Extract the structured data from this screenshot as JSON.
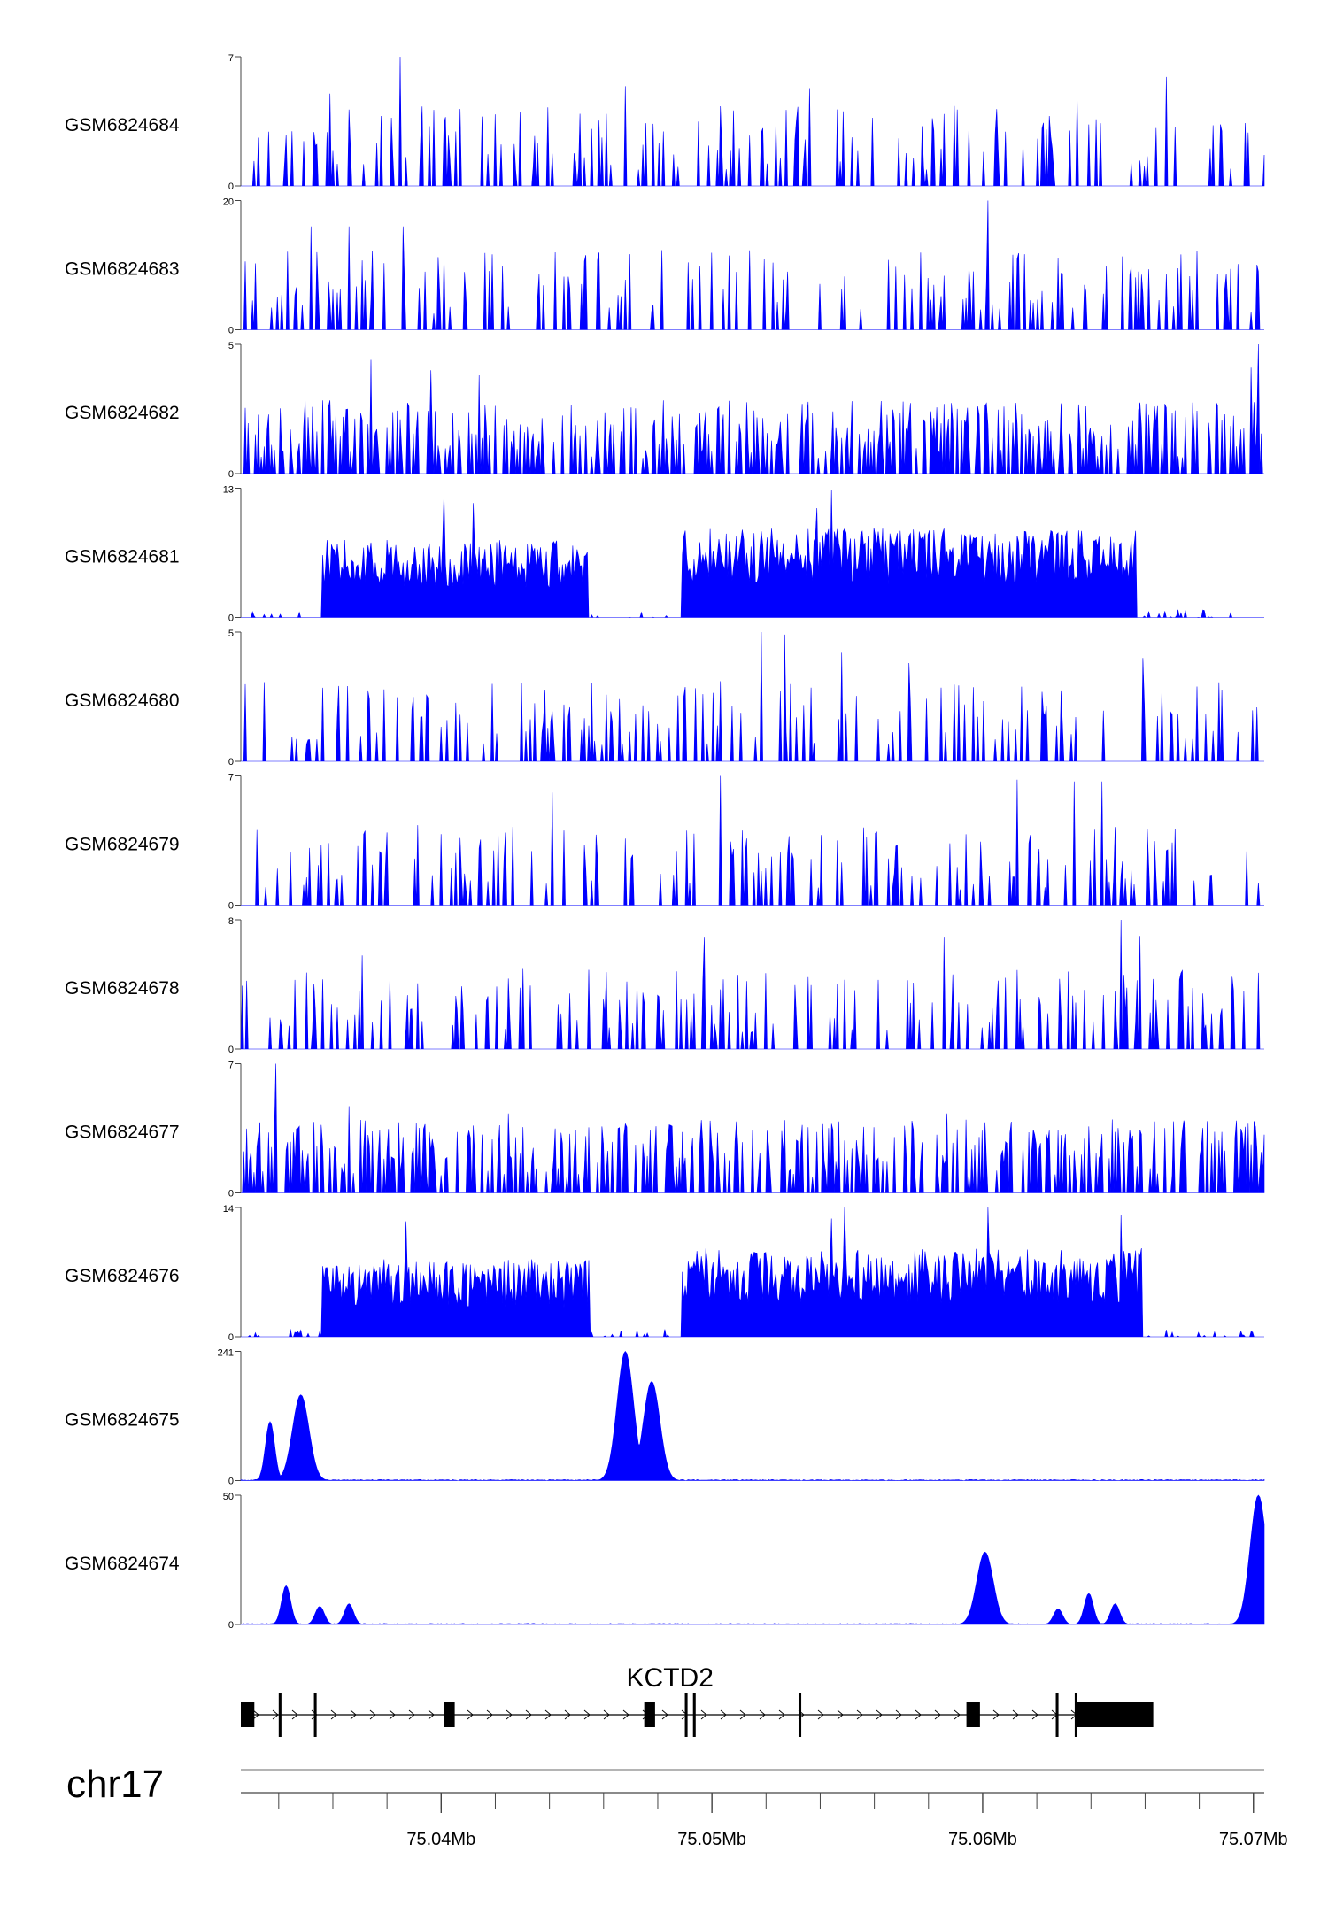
{
  "chart_data": {
    "type": "area",
    "title": "",
    "chromosome": "chr17",
    "xrange": [
      75.0326,
      75.0704
    ],
    "xtick_minor": [
      75.034,
      75.036,
      75.038,
      75.04,
      75.042,
      75.044,
      75.046,
      75.048,
      75.05,
      75.052,
      75.054,
      75.056,
      75.058,
      75.06,
      75.062,
      75.064,
      75.066,
      75.068,
      75.07
    ],
    "xtick_labels": [
      {
        "value": 75.04,
        "label": "75.04Mb"
      },
      {
        "value": 75.05,
        "label": "75.05Mb"
      },
      {
        "value": 75.06,
        "label": "75.06Mb"
      },
      {
        "value": 75.07,
        "label": "75.07Mb"
      }
    ],
    "fill_color": "#0000ff",
    "series": [
      {
        "name": "GSM6824684",
        "ymax": 7,
        "ymin_label": "0",
        "ymax_label": "7",
        "pattern": "sparse",
        "peaks": [
          [
            75.0385,
            7.0
          ],
          [
            75.0536,
            5.3
          ],
          [
            75.0668,
            5.9
          ],
          [
            75.0468,
            5.4
          ],
          [
            75.0635,
            4.9
          ],
          [
            75.0359,
            5.0
          ]
        ]
      },
      {
        "name": "GSM6824683",
        "ymax": 20,
        "ymin_label": "0",
        "ymax_label": "20",
        "pattern": "sparse",
        "peaks": [
          [
            75.0366,
            16.0
          ],
          [
            75.0352,
            16.0
          ],
          [
            75.0386,
            16.0
          ],
          [
            75.0602,
            20.0
          ],
          [
            75.0354,
            12.0
          ]
        ]
      },
      {
        "name": "GSM6824682",
        "ymax": 5,
        "ymin_label": "0",
        "ymax_label": "5",
        "pattern": "dense",
        "peaks": [
          [
            75.0702,
            5.0
          ],
          [
            75.0374,
            4.4
          ],
          [
            75.0396,
            4.0
          ],
          [
            75.0414,
            3.8
          ],
          [
            75.0699,
            4.1
          ]
        ]
      },
      {
        "name": "GSM6824681",
        "ymax": 13,
        "ymin_label": "0",
        "ymax_label": "13",
        "pattern": "regions",
        "regions": [
          [
            75.0356,
            75.0454,
            6.5
          ],
          [
            75.0489,
            75.0657,
            7.5
          ]
        ],
        "peaks": [
          [
            75.0401,
            12.5
          ],
          [
            75.0412,
            11.5
          ],
          [
            75.0544,
            12.8
          ],
          [
            75.0539,
            11.0
          ]
        ]
      },
      {
        "name": "GSM6824680",
        "ymax": 5,
        "ymin_label": "0",
        "ymax_label": "5",
        "pattern": "sparse",
        "peaks": [
          [
            75.0518,
            5.0
          ],
          [
            75.0527,
            4.9
          ],
          [
            75.0548,
            4.2
          ],
          [
            75.0659,
            4.0
          ],
          [
            75.0573,
            3.8
          ]
        ]
      },
      {
        "name": "GSM6824679",
        "ymax": 7,
        "ymin_label": "0",
        "ymax_label": "7",
        "pattern": "sparse",
        "peaks": [
          [
            75.0503,
            7.0
          ],
          [
            75.0613,
            6.8
          ],
          [
            75.0634,
            6.7
          ],
          [
            75.0644,
            6.7
          ],
          [
            75.0441,
            6.1
          ]
        ]
      },
      {
        "name": "GSM6824678",
        "ymax": 8,
        "ymin_label": "0",
        "ymax_label": "8",
        "pattern": "sparse",
        "peaks": [
          [
            75.0651,
            8.0
          ],
          [
            75.0658,
            7.0
          ],
          [
            75.0586,
            6.9
          ],
          [
            75.0497,
            6.9
          ],
          [
            75.0371,
            5.8
          ]
        ]
      },
      {
        "name": "GSM6824677",
        "ymax": 7,
        "ymin_label": "0",
        "ymax_label": "7",
        "pattern": "dense",
        "peaks": [
          [
            75.0339,
            7.0
          ],
          [
            75.0425,
            4.3
          ],
          [
            75.0587,
            4.3
          ],
          [
            75.0366,
            4.7
          ]
        ]
      },
      {
        "name": "GSM6824676",
        "ymax": 14,
        "ymin_label": "0",
        "ymax_label": "14",
        "pattern": "regions",
        "regions": [
          [
            75.0356,
            75.0455,
            7.0
          ],
          [
            75.0489,
            75.0659,
            8.0
          ]
        ],
        "peaks": [
          [
            75.0549,
            14.0
          ],
          [
            75.0602,
            14.0
          ],
          [
            75.0651,
            13.2
          ],
          [
            75.0387,
            12.5
          ],
          [
            75.0544,
            12.8
          ]
        ]
      },
      {
        "name": "GSM6824675",
        "ymax": 241,
        "ymin_label": "0",
        "ymax_label": "241",
        "pattern": "peaks",
        "peaks": [
          [
            75.0337,
            110.0
          ],
          [
            75.0348,
            160.0
          ],
          [
            75.0468,
            241.0
          ],
          [
            75.0478,
            185.0
          ]
        ]
      },
      {
        "name": "GSM6824674",
        "ymax": 50,
        "ymin_label": "0",
        "ymax_label": "50",
        "pattern": "peaks",
        "peaks": [
          [
            75.0343,
            15.0
          ],
          [
            75.0355,
            7.0
          ],
          [
            75.0366,
            8.0
          ],
          [
            75.0601,
            28.0
          ],
          [
            75.0639,
            12.0
          ],
          [
            75.0649,
            8.0
          ],
          [
            75.0628,
            6.0
          ],
          [
            75.0702,
            50.0
          ]
        ]
      }
    ],
    "gene": {
      "name": "KCTD2",
      "strand": "+",
      "span": [
        75.0326,
        75.0662
      ],
      "exons": [
        [
          75.0326,
          75.0331
        ],
        [
          75.034,
          75.0341
        ],
        [
          75.0353,
          75.0354
        ],
        [
          75.0401,
          75.0405
        ],
        [
          75.0475,
          75.0479
        ],
        [
          75.049,
          75.0491
        ],
        [
          75.0493,
          75.0494
        ],
        [
          75.0532,
          75.0533
        ],
        [
          75.0594,
          75.0599
        ],
        [
          75.0627,
          75.0628
        ],
        [
          75.0634,
          75.0635
        ],
        [
          75.0635,
          75.0663
        ]
      ]
    }
  }
}
